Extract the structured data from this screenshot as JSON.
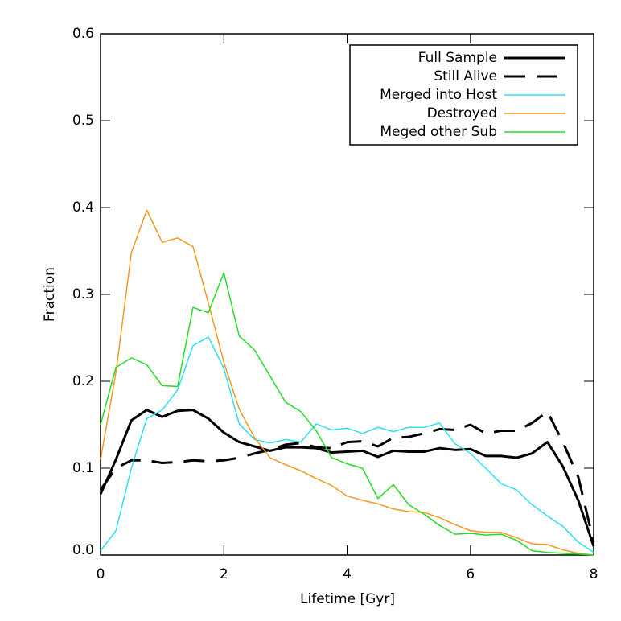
{
  "chart_data": {
    "type": "line",
    "xlabel": "Lifetime [Gyr]",
    "ylabel": "Fraction",
    "xlim": [
      0,
      8
    ],
    "ylim": [
      0,
      0.6
    ],
    "xticks": [
      0,
      2,
      4,
      6,
      8
    ],
    "yticks": [
      {
        "value": 0,
        "label": "0.0"
      },
      0.1,
      0.2,
      0.3,
      0.4,
      0.5,
      0.6
    ],
    "legend": "upper right",
    "x": [
      0,
      0.25,
      0.5,
      0.75,
      1,
      1.25,
      1.5,
      1.75,
      2,
      2.25,
      2.5,
      2.75,
      3,
      3.25,
      3.5,
      3.75,
      4,
      4.25,
      4.5,
      4.75,
      5,
      5.25,
      5.5,
      5.75,
      6,
      6.25,
      6.5,
      6.75,
      7,
      7.25,
      7.5,
      7.75,
      8
    ],
    "series": [
      {
        "name": "Full Sample",
        "color": "#000000",
        "linewidth": 3,
        "linestyle": "solid",
        "values": [
          0.07,
          0.11,
          0.155,
          0.167,
          0.159,
          0.166,
          0.167,
          0.157,
          0.141,
          0.13,
          0.125,
          0.12,
          0.124,
          0.124,
          0.123,
          0.118,
          0.119,
          0.12,
          0.113,
          0.12,
          0.119,
          0.119,
          0.123,
          0.121,
          0.122,
          0.114,
          0.114,
          0.112,
          0.117,
          0.13,
          0.102,
          0.063,
          0.01
        ]
      },
      {
        "name": "Still Alive",
        "color": "#000000",
        "linewidth": 3,
        "linestyle": "dashed",
        "values": [
          0.075,
          0.1,
          0.109,
          0.109,
          0.106,
          0.107,
          0.109,
          0.108,
          0.109,
          0.112,
          0.117,
          0.121,
          0.127,
          0.129,
          0.124,
          0.123,
          0.13,
          0.131,
          0.125,
          0.135,
          0.136,
          0.14,
          0.145,
          0.144,
          0.15,
          0.14,
          0.143,
          0.143,
          0.152,
          0.165,
          0.13,
          0.09,
          0.015
        ]
      },
      {
        "name": "Merged into Host",
        "color": "#2ee0f0",
        "linewidth": 1.5,
        "linestyle": "solid",
        "values": [
          0.005,
          0.028,
          0.1,
          0.157,
          0.167,
          0.19,
          0.241,
          0.251,
          0.215,
          0.151,
          0.133,
          0.129,
          0.133,
          0.13,
          0.151,
          0.144,
          0.146,
          0.14,
          0.147,
          0.142,
          0.147,
          0.147,
          0.152,
          0.128,
          0.117,
          0.1,
          0.082,
          0.075,
          0.058,
          0.045,
          0.033,
          0.015,
          0.003
        ]
      },
      {
        "name": "Destroyed",
        "color": "#f5991e",
        "linewidth": 1.5,
        "linestyle": "solid",
        "values": [
          0.11,
          0.21,
          0.348,
          0.397,
          0.36,
          0.365,
          0.355,
          0.29,
          0.222,
          0.168,
          0.135,
          0.112,
          0.104,
          0.097,
          0.088,
          0.08,
          0.068,
          0.063,
          0.059,
          0.053,
          0.05,
          0.049,
          0.043,
          0.035,
          0.028,
          0.026,
          0.026,
          0.02,
          0.013,
          0.012,
          0.006,
          0.002,
          0
        ]
      },
      {
        "name": "Meged other Sub",
        "color": "#22dd22",
        "linewidth": 1.5,
        "linestyle": "solid",
        "values": [
          0.15,
          0.216,
          0.227,
          0.219,
          0.195,
          0.194,
          0.285,
          0.279,
          0.325,
          0.252,
          0.236,
          0.206,
          0.176,
          0.165,
          0.143,
          0.112,
          0.105,
          0.1,
          0.065,
          0.081,
          0.058,
          0.047,
          0.034,
          0.024,
          0.025,
          0.023,
          0.024,
          0.017,
          0.005,
          0.003,
          0.002,
          0.001,
          0
        ]
      }
    ]
  }
}
